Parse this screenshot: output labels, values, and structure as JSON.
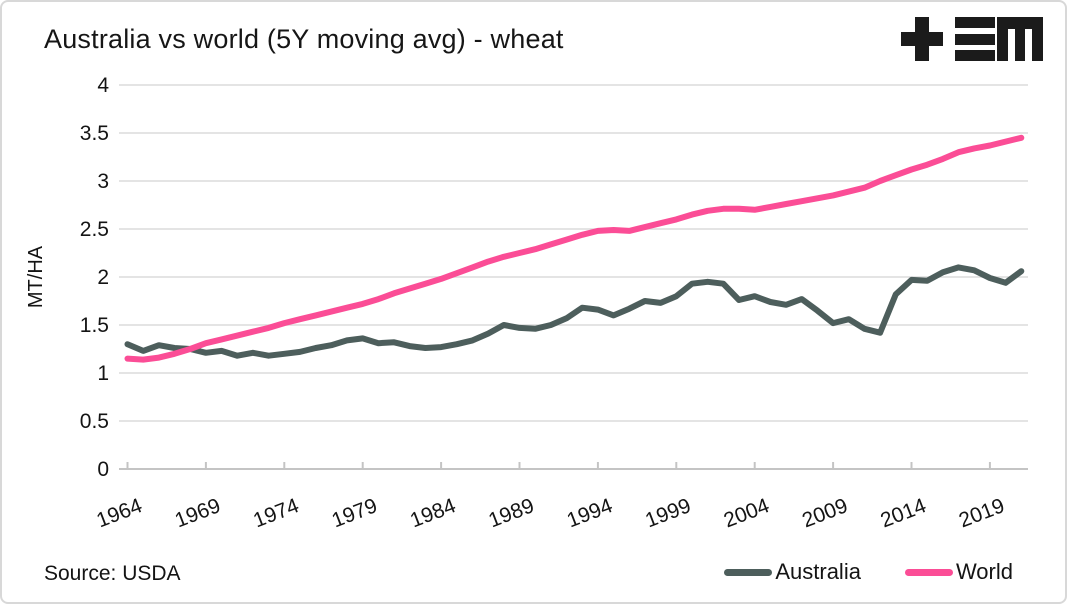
{
  "header": {
    "title": "Australia vs world (5Y moving avg) - wheat",
    "logo_icon": "tem-logo"
  },
  "footer": {
    "source": "Source: USDA"
  },
  "colors": {
    "background": "#ffffff",
    "border": "#d8d8d8",
    "grid": "#dcdcdc",
    "axis": "#c4c4c4",
    "text": "#141414",
    "logo": "#1b1b1b",
    "australia": "#4d5e5c",
    "world": "#fb4d96"
  },
  "chart_data": {
    "type": "line",
    "title": "Australia vs world (5Y moving avg) - wheat",
    "xlabel": "",
    "ylabel": "MT/HA",
    "ylim": [
      0,
      4
    ],
    "grid": "horizontal",
    "legend_position": "bottom-right",
    "yticks": [
      "0",
      "0.5",
      "1",
      "1.5",
      "2",
      "2.5",
      "3",
      "3.5",
      "4"
    ],
    "xticks": [
      "1964",
      "1969",
      "1974",
      "1979",
      "1984",
      "1989",
      "1994",
      "1999",
      "2004",
      "2009",
      "2014",
      "2019"
    ],
    "x": [
      1964,
      1965,
      1966,
      1967,
      1968,
      1969,
      1970,
      1971,
      1972,
      1973,
      1974,
      1975,
      1976,
      1977,
      1978,
      1979,
      1980,
      1981,
      1982,
      1983,
      1984,
      1985,
      1986,
      1987,
      1988,
      1989,
      1990,
      1991,
      1992,
      1993,
      1994,
      1995,
      1996,
      1997,
      1998,
      1999,
      2000,
      2001,
      2002,
      2003,
      2004,
      2005,
      2006,
      2007,
      2008,
      2009,
      2010,
      2011,
      2012,
      2013,
      2014,
      2015,
      2016,
      2017,
      2018,
      2019,
      2020,
      2021
    ],
    "series": [
      {
        "name": "Australia",
        "color": "#4d5e5c",
        "values": [
          1.3,
          1.23,
          1.29,
          1.26,
          1.25,
          1.21,
          1.23,
          1.18,
          1.21,
          1.18,
          1.2,
          1.22,
          1.26,
          1.29,
          1.34,
          1.36,
          1.31,
          1.32,
          1.28,
          1.26,
          1.27,
          1.3,
          1.34,
          1.41,
          1.5,
          1.47,
          1.46,
          1.5,
          1.57,
          1.68,
          1.66,
          1.6,
          1.67,
          1.75,
          1.73,
          1.8,
          1.93,
          1.95,
          1.93,
          1.76,
          1.8,
          1.74,
          1.71,
          1.77,
          1.65,
          1.52,
          1.56,
          1.46,
          1.42,
          1.82,
          1.97,
          1.96,
          2.05,
          2.1,
          2.07,
          1.99,
          1.94,
          2.06
        ]
      },
      {
        "name": "World",
        "color": "#fb4d96",
        "values": [
          1.15,
          1.14,
          1.16,
          1.2,
          1.25,
          1.31,
          1.35,
          1.39,
          1.43,
          1.47,
          1.52,
          1.56,
          1.6,
          1.64,
          1.68,
          1.72,
          1.77,
          1.83,
          1.88,
          1.93,
          1.98,
          2.04,
          2.1,
          2.16,
          2.21,
          2.25,
          2.29,
          2.34,
          2.39,
          2.44,
          2.48,
          2.49,
          2.48,
          2.52,
          2.56,
          2.6,
          2.65,
          2.69,
          2.71,
          2.71,
          2.7,
          2.73,
          2.76,
          2.79,
          2.82,
          2.85,
          2.89,
          2.93,
          3.0,
          3.06,
          3.12,
          3.17,
          3.23,
          3.3,
          3.34,
          3.37,
          3.41,
          3.45
        ]
      }
    ]
  }
}
